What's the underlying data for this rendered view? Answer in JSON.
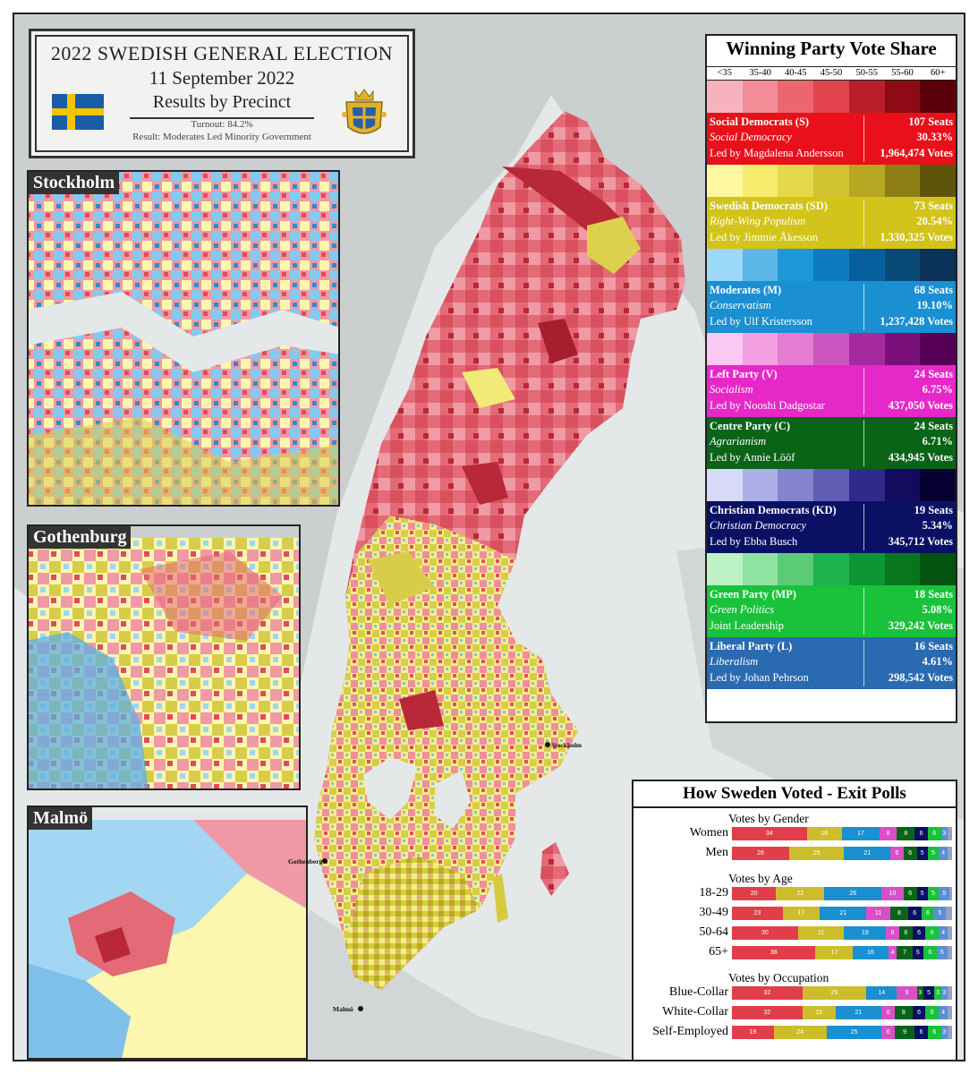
{
  "header": {
    "title": "2022 SWEDISH GENERAL ELECTION",
    "date": "11 September 2022",
    "subtitle": "Results by Precinct",
    "turnout": "Turnout: 84.2%",
    "result": "Result: Moderates Led Minority Government"
  },
  "insets": [
    {
      "label": "Stockholm"
    },
    {
      "label": "Gothenburg"
    },
    {
      "label": "Malmö"
    }
  ],
  "cities": [
    {
      "name": "Stockholm"
    },
    {
      "name": "Gothenberg"
    },
    {
      "name": "Malmö"
    }
  ],
  "legend": {
    "title": "Winning Party Vote Share",
    "bins": [
      "<35",
      "35-40",
      "40-45",
      "45-50",
      "50-55",
      "55-60",
      "60+"
    ],
    "parties": [
      {
        "name": "Social Democrats (S)",
        "seats": "107 Seats",
        "ideology": "Social Democracy",
        "share": "30.33%",
        "leader": "Led by Magdalena Andersson",
        "votes": "1,964,474 Votes",
        "color": "#e8101a",
        "scale": [
          "#f7b3bd",
          "#f28c97",
          "#ec6670",
          "#e2454f",
          "#b81f2b",
          "#8e0a14",
          "#5a0008"
        ]
      },
      {
        "name": "Swedish Democrats (SD)",
        "seats": "73 Seats",
        "ideology": "Right-Wing Populism",
        "share": "20.54%",
        "leader": "Led by Jimmie Åkesson",
        "votes": "1,330,325 Votes",
        "color": "#d2c41a",
        "scale": [
          "#fcf7a0",
          "#f5ec6e",
          "#e5d84a",
          "#d1c232",
          "#b6a622",
          "#8d7f14",
          "#5e540a"
        ]
      },
      {
        "name": "Moderates (M)",
        "seats": "68 Seats",
        "ideology": "Conservatism",
        "share": "19.10%",
        "leader": "Led by Ulf Kristersson",
        "votes": "1,237,428 Votes",
        "color": "#1a8fd1",
        "scale": [
          "#9cd8f7",
          "#5ab7e8",
          "#1e98d6",
          "#0e7bc0",
          "#07609e",
          "#084a78",
          "#0a3258"
        ]
      },
      {
        "name": "Left Party (V)",
        "seats": "24 Seats",
        "ideology": "Socialism",
        "share": "6.75%",
        "leader": "Led by Nooshi Dadgostar",
        "votes": "437,050 Votes",
        "color": "#e628c8",
        "scale": [
          "#fbc8f2",
          "#f3a0e3",
          "#e47dd4",
          "#cc55bf",
          "#a52a9e",
          "#7c107a",
          "#560056"
        ]
      },
      {
        "name": "Centre Party (C)",
        "seats": "24 Seats",
        "ideology": "Agrarianism",
        "share": "6.71%",
        "leader": "Led by Annie Lööf",
        "votes": "434,945 Votes",
        "color": "#0a6418",
        "scale": []
      },
      {
        "name": "Christian Democrats (KD)",
        "seats": "19 Seats",
        "ideology": "Christian Democracy",
        "share": "5.34%",
        "leader": "Led by Ebba Busch",
        "votes": "345,712 Votes",
        "color": "#0a1064",
        "scale": [
          "#d8d8f8",
          "#aeaee6",
          "#8684cf",
          "#615db4",
          "#322a8a",
          "#140a5e",
          "#060032"
        ]
      },
      {
        "name": "Green Party (MP)",
        "seats": "18 Seats",
        "ideology": "Green Politics",
        "share": "5.08%",
        "leader": "Joint Leadership",
        "votes": "329,242 Votes",
        "color": "#19c23a",
        "scale": [
          "#bdf2c4",
          "#8fe3a0",
          "#5ccb78",
          "#1fb24e",
          "#0e9634",
          "#08761e",
          "#045210"
        ]
      },
      {
        "name": "Liberal Party (L)",
        "seats": "16 Seats",
        "ideology": "Liberalism",
        "share": "4.61%",
        "leader": "Led by Johan Pehrson",
        "votes": "298,542 Votes",
        "color": "#2a6ab0",
        "scale": []
      }
    ]
  },
  "exit_polls": {
    "title": "How Sweden Voted - Exit Polls",
    "party_colors": [
      "#e23e4a",
      "#cdbd2a",
      "#1a8fd1",
      "#d94fc8",
      "#0a6418",
      "#0a1064",
      "#19c23a",
      "#5a8fd6",
      "#9aa0c0"
    ],
    "sections": [
      {
        "title": "Votes by Gender",
        "rows": [
          {
            "label": "Women",
            "values": [
              34,
              16,
              17,
              8,
              8,
              6,
              6,
              3,
              2
            ]
          },
          {
            "label": "Men",
            "values": [
              26,
              25,
              21,
              6,
              6,
              5,
              5,
              4,
              2
            ]
          }
        ]
      },
      {
        "title": "Votes by Age",
        "rows": [
          {
            "label": "18-29",
            "values": [
              20,
              22,
              26,
              10,
              6,
              5,
              5,
              5,
              1
            ]
          },
          {
            "label": "30-49",
            "values": [
              23,
              17,
              21,
              11,
              8,
              6,
              6,
              5,
              3
            ]
          },
          {
            "label": "50-64",
            "values": [
              30,
              21,
              19,
              6,
              6,
              6,
              6,
              4,
              2
            ]
          },
          {
            "label": "65+",
            "values": [
              38,
              17,
              16,
              4,
              7,
              5,
              6,
              5,
              2
            ]
          }
        ]
      },
      {
        "title": "Votes by Occupation",
        "rows": [
          {
            "label": "Blue-Collar",
            "values": [
              32,
              29,
              14,
              9,
              3,
              5,
              3,
              3,
              2
            ]
          },
          {
            "label": "White-Collar",
            "values": [
              32,
              15,
              21,
              6,
              8,
              6,
              6,
              4,
              2
            ]
          },
          {
            "label": "Self-Employed",
            "values": [
              19,
              24,
              25,
              6,
              9,
              6,
              6,
              3,
              2
            ]
          }
        ]
      }
    ]
  }
}
